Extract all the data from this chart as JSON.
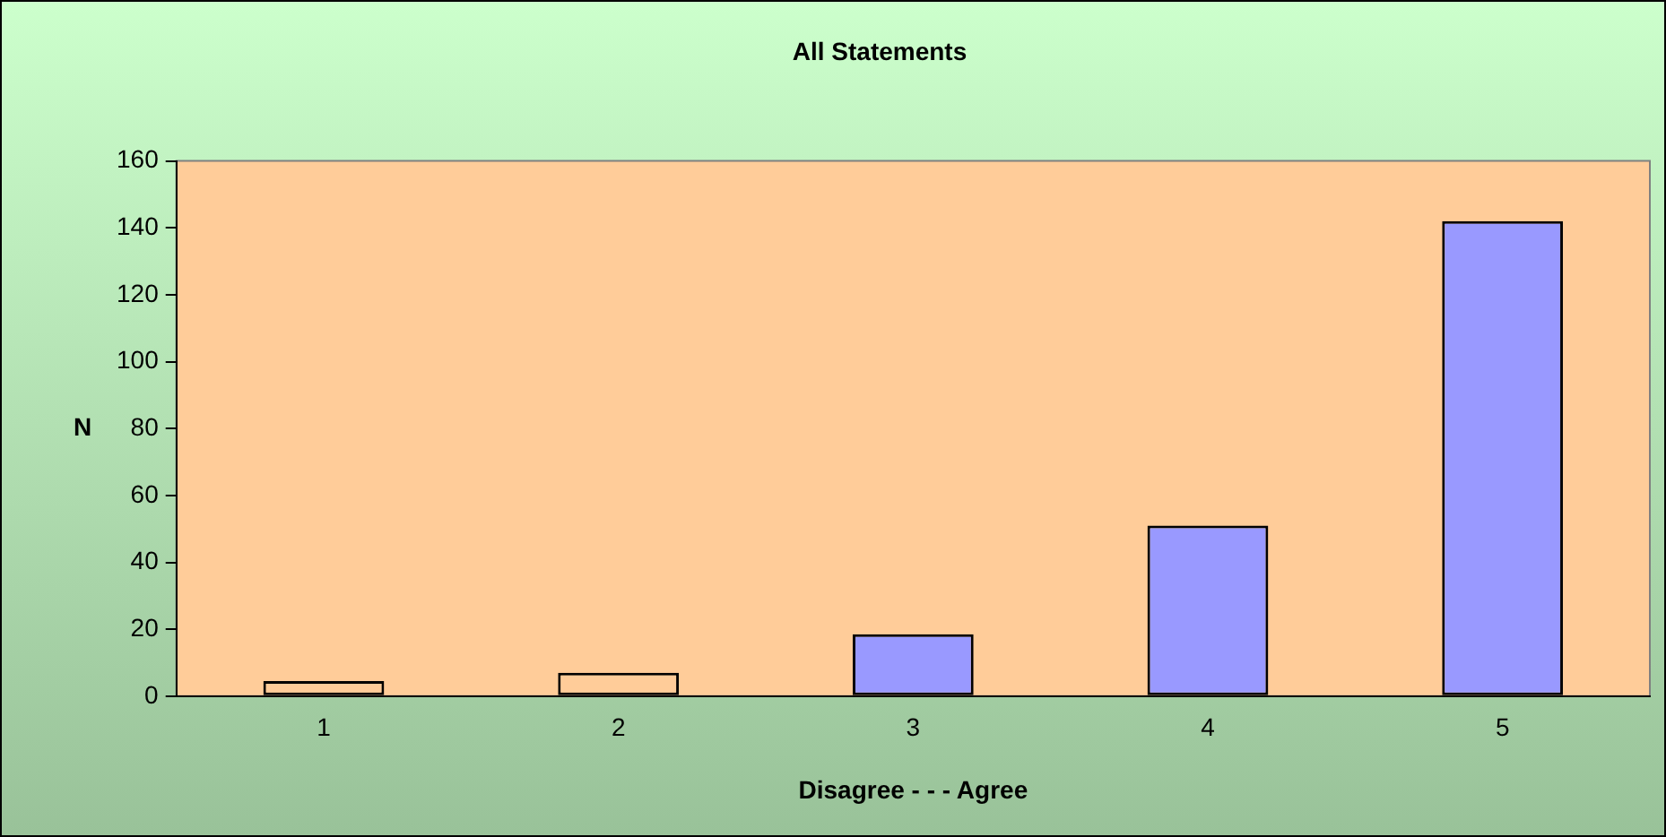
{
  "chart_data": {
    "type": "bar",
    "title": "All Statements",
    "xlabel": "Disagree - - - Agree",
    "ylabel": "N",
    "categories": [
      "1",
      "2",
      "3",
      "4",
      "5"
    ],
    "values": [
      4.5,
      7,
      18.5,
      51,
      142
    ],
    "colors": [
      "#ffcc99",
      "#ffcc99",
      "#9999ff",
      "#9999ff",
      "#9999ff"
    ],
    "ylim": [
      0,
      160
    ],
    "yticks": [
      0,
      20,
      40,
      60,
      80,
      100,
      120,
      140,
      160
    ],
    "grid": false,
    "legend": false
  }
}
